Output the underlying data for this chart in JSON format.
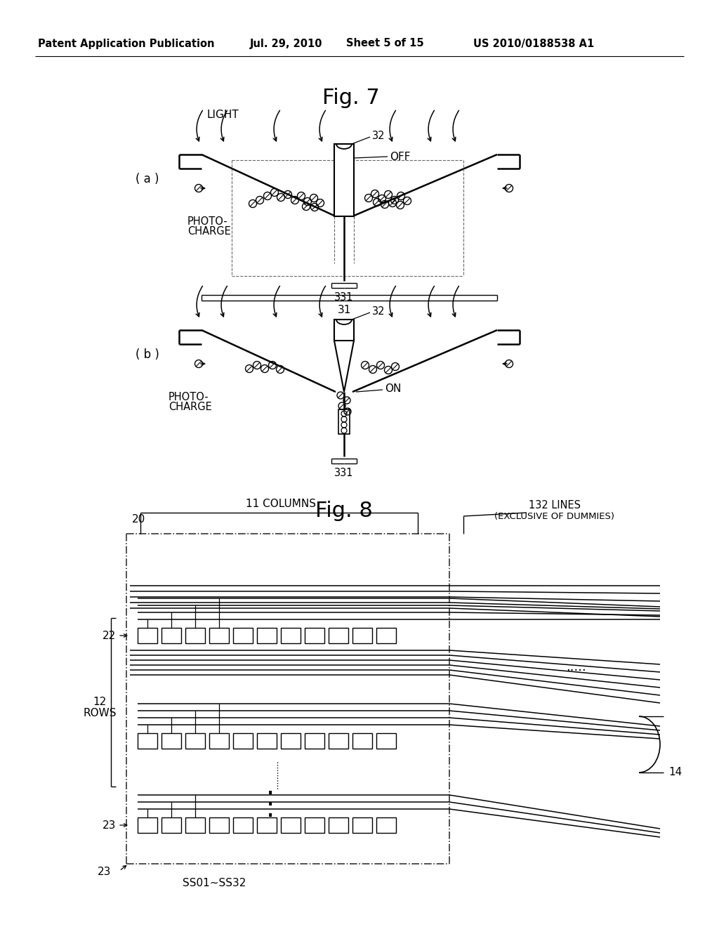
{
  "bg_color": "#ffffff",
  "header_text": "Patent Application Publication",
  "header_date": "Jul. 29, 2010",
  "header_sheet": "Sheet 5 of 15",
  "header_patent": "US 2010/0188538 A1",
  "fig7_title": "Fig. 7",
  "fig8_title": "Fig. 8",
  "label_a": "( a )",
  "label_b": "( b )",
  "label_32": "32",
  "label_331": "331",
  "label_31": "31",
  "label_off": "OFF",
  "label_on": "ON",
  "label_light": "LIGHT",
  "label_photocharge_a": "PHOTO-\nCHARGE",
  "label_photocharge_b": "PHOTO-\nCHARGE",
  "label_20": "20",
  "label_22": "22",
  "label_23": "23",
  "label_14": "14",
  "label_12rows": "12\nROWS",
  "label_11cols": "11 COLUMNS",
  "label_132lines": "132 LINES\n(EXCLUSIVE OF DUMMIES)",
  "label_ss": "SS01~SS32",
  "text_color": "#000000"
}
